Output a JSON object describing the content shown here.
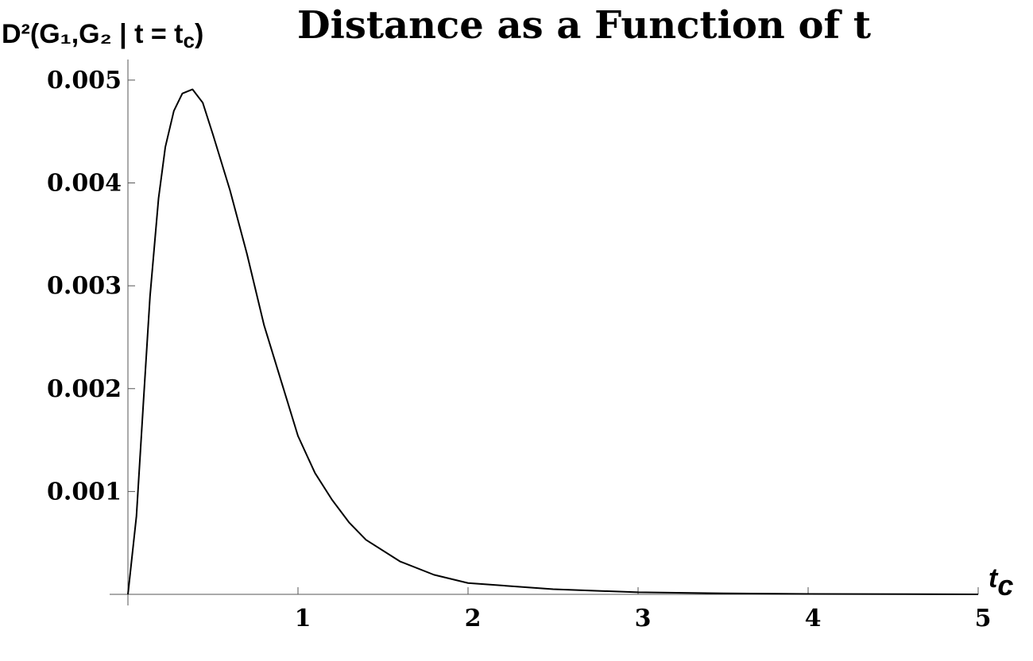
{
  "chart_data": {
    "type": "line",
    "title": "Distance as a Function of t",
    "y_label": "D²(G₁,G₂ | t = t",
    "y_label_subscript": "c",
    "y_label_end": ")",
    "x_label": "t",
    "x_label_subscript": "c",
    "x": [
      0,
      0.05,
      0.09,
      0.13,
      0.18,
      0.22,
      0.27,
      0.32,
      0.38,
      0.44,
      0.5,
      0.6,
      0.7,
      0.8,
      0.9,
      1.0,
      1.1,
      1.2,
      1.3,
      1.4,
      1.6,
      1.8,
      2.0,
      2.5,
      3.0,
      3.5,
      4.0,
      5.0
    ],
    "values": [
      0,
      0.00076,
      0.00184,
      0.0029,
      0.00385,
      0.00435,
      0.0047,
      0.00487,
      0.00491,
      0.00478,
      0.00447,
      0.00393,
      0.00331,
      0.00262,
      0.00208,
      0.00154,
      0.00118,
      0.00092,
      0.0007,
      0.00053,
      0.00032,
      0.00019,
      0.00011,
      5e-05,
      2e-05,
      1e-05,
      4e-06,
      0
    ],
    "color": "#000000",
    "xlim": [
      0,
      5
    ],
    "ylim": [
      0,
      0.0052
    ],
    "xticks": [
      1,
      2,
      3,
      4,
      5
    ],
    "yticks": [
      0.001,
      0.002,
      0.003,
      0.004,
      0.005
    ]
  }
}
